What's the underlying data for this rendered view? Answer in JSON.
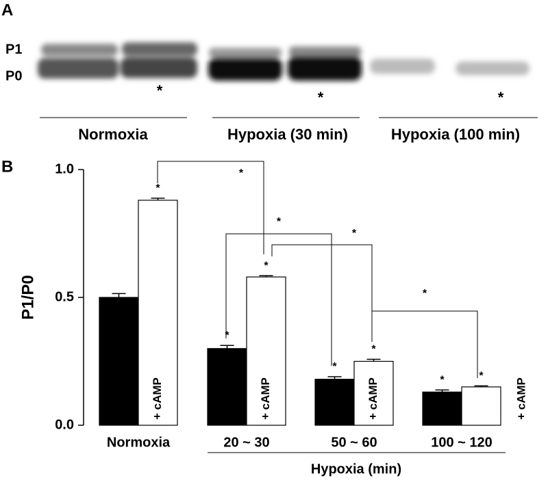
{
  "blot": {
    "panel_label": "A",
    "band_labels": [
      "P1",
      "P0"
    ],
    "groups": [
      "Normoxia",
      "Hypoxia (30 min)",
      "Hypoxia (100 min)"
    ]
  },
  "significance_label": "*",
  "chart_data": {
    "type": "bar",
    "panel_label": "B",
    "ylabel": "P1/P0",
    "xlabel": "Hypoxia (min)",
    "categories": [
      "Normoxia",
      "20 ~ 30",
      "50 ~ 60",
      "100 ~ 120"
    ],
    "series": [
      {
        "color": "#000000",
        "values": [
          0.5,
          0.3,
          0.18,
          0.13
        ],
        "errors": [
          0.015,
          0.012,
          0.01,
          0.008
        ]
      },
      {
        "name": "+ cAMP",
        "color": "#ffffff",
        "values": [
          0.88,
          0.58,
          0.25,
          0.15
        ],
        "errors": [
          0.008,
          0.005,
          0.008,
          0.004
        ]
      }
    ],
    "ylim": [
      0,
      1.0
    ],
    "yticks": [
      {
        "value": 0,
        "label": "0.0"
      },
      {
        "value": 0.5,
        "label": "0.5"
      },
      {
        "value": 1.0,
        "label": "1.0"
      }
    ]
  }
}
